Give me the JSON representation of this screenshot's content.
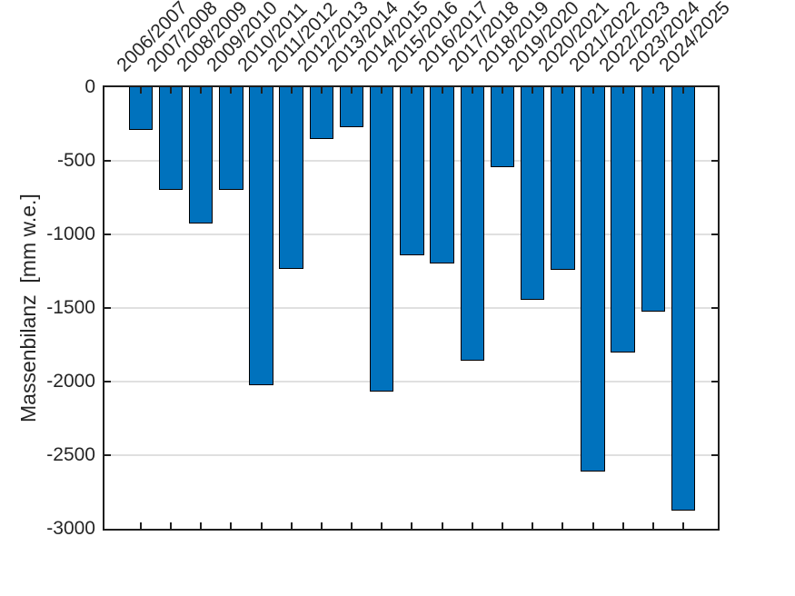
{
  "chart_data": {
    "type": "bar",
    "title": "",
    "xlabel": "",
    "ylabel": "Massenbilanz  [mm w.e.]",
    "categories": [
      "2006/2007",
      "2007/2008",
      "2008/2009",
      "2009/2010",
      "2010/2011",
      "2011/2012",
      "2012/2013",
      "2013/2014",
      "2014/2015",
      "2015/2016",
      "2016/2017",
      "2017/2018",
      "2018/2019",
      "2019/2020",
      "2020/2021",
      "2021/2022",
      "2022/2023",
      "2023/2024",
      "2024/2025"
    ],
    "values": [
      -290,
      -695,
      -925,
      -700,
      -2025,
      -1235,
      -350,
      -270,
      -2070,
      -1145,
      -1200,
      -1855,
      -545,
      -1445,
      -1240,
      -2610,
      -1800,
      -1525,
      -2875
    ],
    "ylim": [
      -3000,
      0
    ],
    "yticks": [
      0,
      -500,
      -1000,
      -1500,
      -2000,
      -2500,
      -3000
    ],
    "ytick_labels": [
      "0",
      "-500",
      "-1000",
      "-1500",
      "-2000",
      "-2500",
      "-3000"
    ],
    "grid": "horizontal-only",
    "legend": "none",
    "x_axis_location": "top",
    "x_tick_label_rotation_deg": 45,
    "bar_color": "#0072BD",
    "bar_edge_color": "#000000",
    "axis_color": "#262626",
    "grid_color": "#e0e0e0",
    "background_color": "#ffffff"
  }
}
